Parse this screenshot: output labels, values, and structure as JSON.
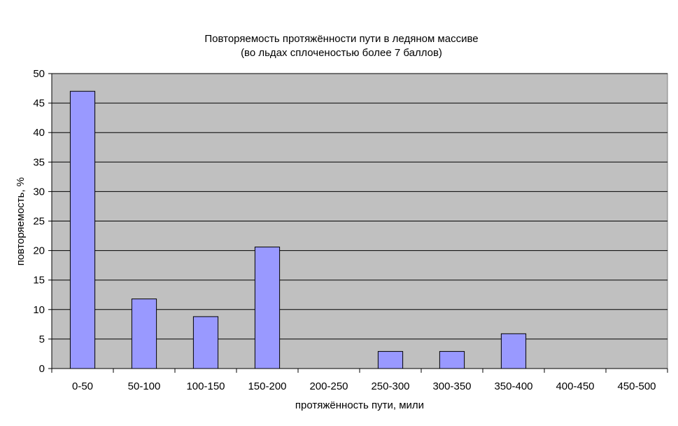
{
  "chart_data": {
    "type": "bar",
    "title_line1": "Повторяемость протяжённости пути в ледяном массиве",
    "title_line2": "(во льдах сплоченостью более 7 баллов)",
    "xlabel": "протяжённость пути, мили",
    "ylabel": "повторяемость, %",
    "categories": [
      "0-50",
      "50-100",
      "100-150",
      "150-200",
      "200-250",
      "250-300",
      "300-350",
      "350-400",
      "400-450",
      "450-500"
    ],
    "values": [
      47,
      11.8,
      8.8,
      20.6,
      0,
      2.9,
      2.9,
      5.9,
      0,
      0
    ],
    "ylim": [
      0,
      50
    ],
    "yticks": [
      "0",
      "5",
      "10",
      "15",
      "20",
      "25",
      "30",
      "35",
      "40",
      "45",
      "50"
    ],
    "grid": true,
    "legend": "none",
    "colors": {
      "bar_fill": "#9999ff",
      "plot_background": "#c0c0c0",
      "grid": "#000000",
      "bar_outline": "#000000"
    }
  }
}
